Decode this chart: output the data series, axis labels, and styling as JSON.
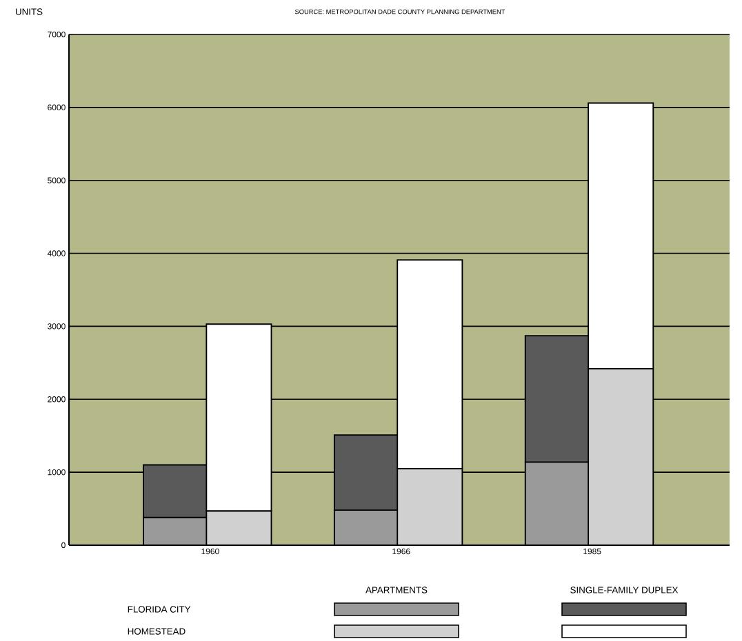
{
  "chart_data": {
    "type": "bar",
    "stacked": true,
    "ylabel": "UNITS",
    "categories": [
      null,
      null,
      null,
      null,
      null,
      null
    ],
    "series": [
      {
        "colors": [
          "#9a9a9a",
          "#d0d0d0",
          "#9a9a9a",
          "#d0d0d0",
          "#9a9a9a",
          "#d0d0d0"
        ],
        "values": [
          380,
          470,
          480,
          1050,
          1140,
          2420
        ]
      },
      {
        "colors": [
          "#5a5a5a",
          "#ffffff",
          "#5a5a5a",
          "#ffffff",
          "#5a5a5a",
          "#ffffff"
        ],
        "values": [
          720,
          2560,
          1030,
          2860,
          1730,
          3640
        ]
      }
    ],
    "ylim": [
      0,
      7000
    ],
    "yticks": [
      0,
      1000,
      2000,
      3000,
      4000,
      5000,
      6000,
      7000
    ],
    "grid": "y",
    "annotations": [
      "SOURCE: METROPOLITAN DADE COUNTY PLANNING DEPARTMENT",
      "1960",
      "1966",
      "1985",
      "FLORIDA CITY",
      "HOMESTEAD",
      "APARTMENTS",
      "SINGLE-FAMILY DUPLEX"
    ]
  }
}
